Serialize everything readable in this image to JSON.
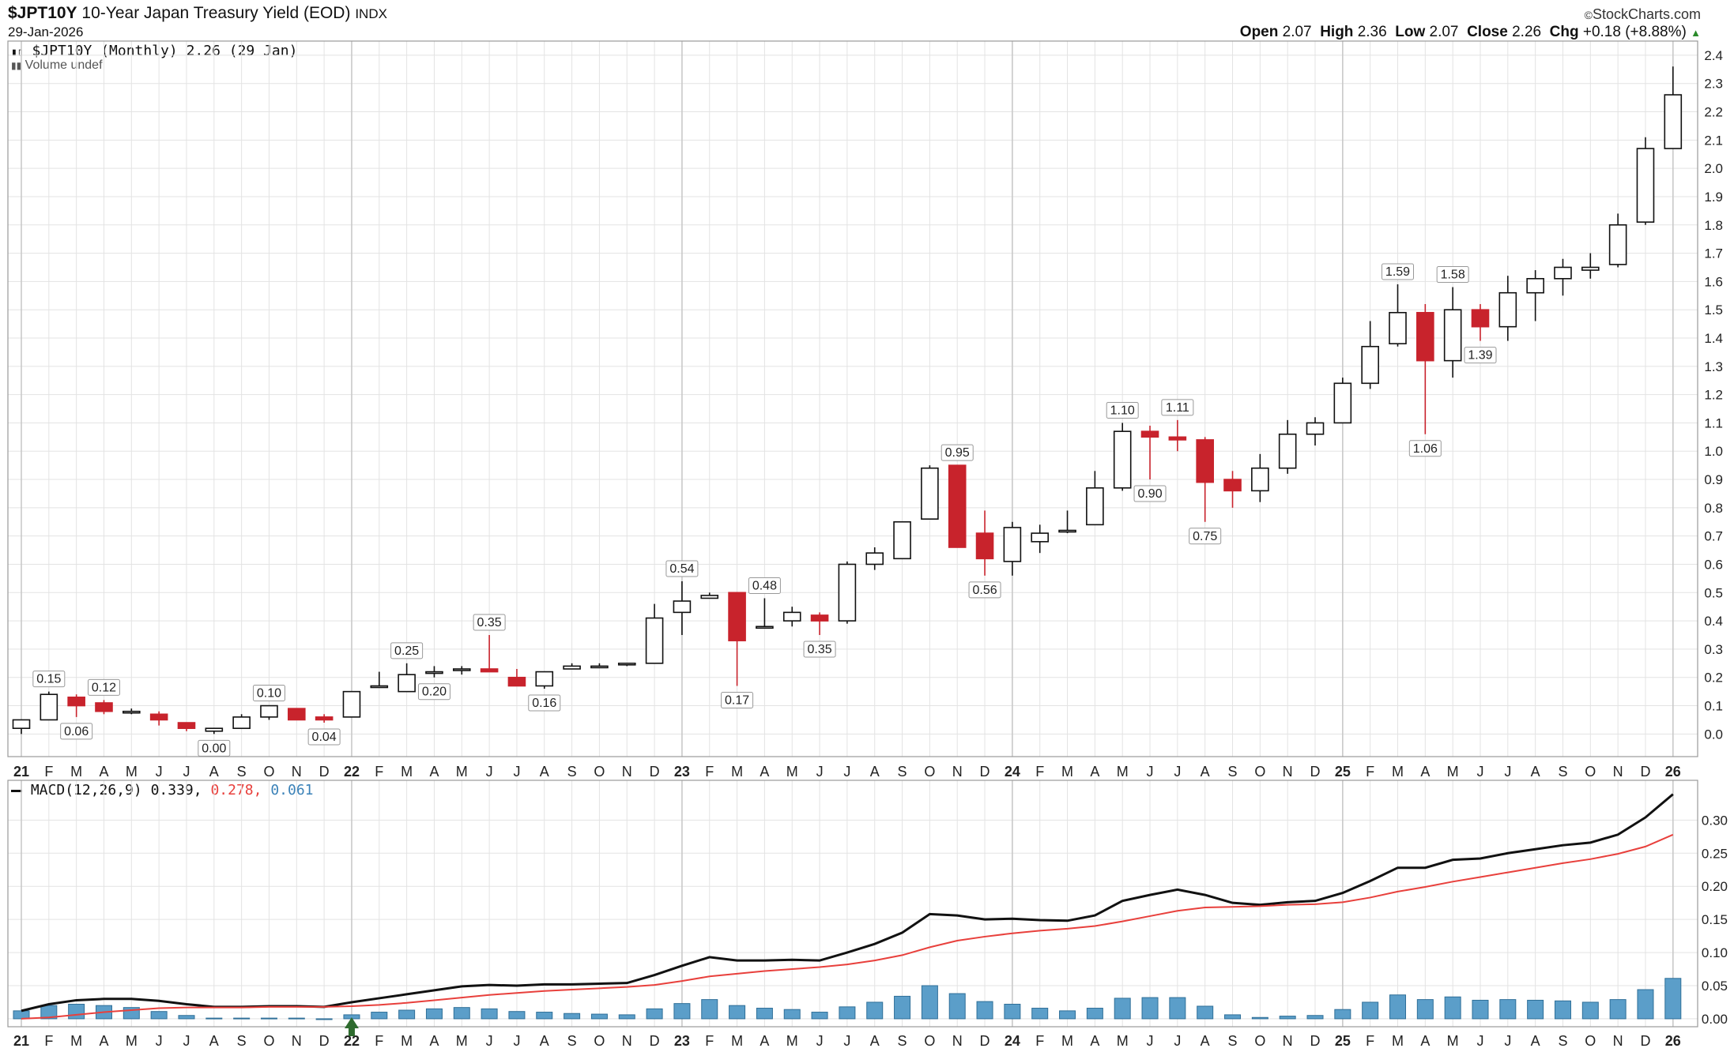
{
  "header": {
    "symbol": "$JPT10Y",
    "name": "10-Year Japan Treasury Yield (EOD)",
    "exchange": "INDX",
    "date": "29-Jan-2026",
    "brand": "StockCharts.com",
    "open_label": "Open",
    "open": "2.07",
    "high_label": "High",
    "high": "2.36",
    "low_label": "Low",
    "low": "2.07",
    "close_label": "Close",
    "close": "2.26",
    "chg_label": "Chg",
    "chg": "+0.18 (+8.88%)",
    "legend_price": "$JPT10Y (Monthly) 2.26 (29 Jan)",
    "legend_volume": "Volume undef",
    "macd_label": "MACD(12,26,9)",
    "macd_value": "0.339,",
    "signal_value": "0.278,",
    "hist_value": "0.061"
  },
  "colors": {
    "up_body": "#ffffff",
    "down_body": "#c8232c",
    "macd_line": "#111111",
    "signal_line": "#e8403c",
    "histogram": "#5b9ec9",
    "grid": "#e3e3e3"
  },
  "chart_data": [
    {
      "type": "candlestick",
      "title": "$JPT10Y (Monthly) 2.26 (29 Jan)",
      "ylim": [
        -0.08,
        2.45
      ],
      "y_ticks": [
        "0.0",
        "0.1",
        "0.2",
        "0.3",
        "0.4",
        "0.5",
        "0.6",
        "0.7",
        "0.8",
        "0.9",
        "1.0",
        "1.1",
        "1.2",
        "1.3",
        "1.4",
        "1.5",
        "1.6",
        "1.7",
        "1.8",
        "1.9",
        "2.0",
        "2.1",
        "2.2",
        "2.3",
        "2.4"
      ],
      "x_labels": [
        "21",
        "F",
        "M",
        "A",
        "M",
        "J",
        "J",
        "A",
        "S",
        "O",
        "N",
        "D",
        "22",
        "F",
        "M",
        "A",
        "M",
        "J",
        "J",
        "A",
        "S",
        "O",
        "N",
        "D",
        "23",
        "F",
        "M",
        "A",
        "M",
        "J",
        "J",
        "A",
        "S",
        "O",
        "N",
        "D",
        "24",
        "F",
        "M",
        "A",
        "M",
        "J",
        "J",
        "A",
        "S",
        "O",
        "N",
        "D",
        "25",
        "F",
        "M",
        "A",
        "M",
        "J",
        "J",
        "A",
        "S",
        "O",
        "N",
        "D",
        "26"
      ],
      "ohlc": [
        [
          0.02,
          0.05,
          0.0,
          0.05
        ],
        [
          0.05,
          0.15,
          0.05,
          0.14
        ],
        [
          0.13,
          0.14,
          0.06,
          0.1
        ],
        [
          0.11,
          0.12,
          0.07,
          0.08
        ],
        [
          0.08,
          0.09,
          0.07,
          0.08
        ],
        [
          0.07,
          0.08,
          0.03,
          0.05
        ],
        [
          0.04,
          0.04,
          0.01,
          0.02
        ],
        [
          0.01,
          0.02,
          0.0,
          0.02
        ],
        [
          0.02,
          0.07,
          0.02,
          0.06
        ],
        [
          0.06,
          0.1,
          0.05,
          0.1
        ],
        [
          0.09,
          0.09,
          0.05,
          0.05
        ],
        [
          0.06,
          0.07,
          0.04,
          0.05
        ],
        [
          0.06,
          0.15,
          0.06,
          0.15
        ],
        [
          0.17,
          0.22,
          0.17,
          0.17
        ],
        [
          0.15,
          0.25,
          0.15,
          0.21
        ],
        [
          0.22,
          0.24,
          0.2,
          0.22
        ],
        [
          0.23,
          0.24,
          0.21,
          0.23
        ],
        [
          0.23,
          0.35,
          0.22,
          0.22
        ],
        [
          0.2,
          0.23,
          0.17,
          0.17
        ],
        [
          0.17,
          0.22,
          0.16,
          0.22
        ],
        [
          0.23,
          0.25,
          0.23,
          0.24
        ],
        [
          0.24,
          0.25,
          0.24,
          0.24
        ],
        [
          0.25,
          0.25,
          0.24,
          0.25
        ],
        [
          0.25,
          0.46,
          0.25,
          0.41
        ],
        [
          0.43,
          0.54,
          0.35,
          0.47
        ],
        [
          0.48,
          0.5,
          0.48,
          0.49
        ],
        [
          0.5,
          0.5,
          0.17,
          0.33
        ],
        [
          0.38,
          0.48,
          0.38,
          0.38
        ],
        [
          0.4,
          0.45,
          0.38,
          0.43
        ],
        [
          0.42,
          0.43,
          0.35,
          0.4
        ],
        [
          0.4,
          0.61,
          0.39,
          0.6
        ],
        [
          0.6,
          0.66,
          0.58,
          0.64
        ],
        [
          0.62,
          0.75,
          0.62,
          0.75
        ],
        [
          0.76,
          0.95,
          0.76,
          0.94
        ],
        [
          0.95,
          0.95,
          0.66,
          0.66
        ],
        [
          0.71,
          0.79,
          0.56,
          0.62
        ],
        [
          0.61,
          0.75,
          0.56,
          0.73
        ],
        [
          0.68,
          0.74,
          0.64,
          0.71
        ],
        [
          0.72,
          0.79,
          0.71,
          0.72
        ],
        [
          0.74,
          0.93,
          0.74,
          0.87
        ],
        [
          0.87,
          1.1,
          0.86,
          1.07
        ],
        [
          1.07,
          1.09,
          0.9,
          1.05
        ],
        [
          1.05,
          1.11,
          1.0,
          1.04
        ],
        [
          1.04,
          1.05,
          0.75,
          0.89
        ],
        [
          0.9,
          0.93,
          0.8,
          0.86
        ],
        [
          0.86,
          0.99,
          0.82,
          0.94
        ],
        [
          0.94,
          1.11,
          0.92,
          1.06
        ],
        [
          1.06,
          1.12,
          1.02,
          1.1
        ],
        [
          1.1,
          1.26,
          1.1,
          1.24
        ],
        [
          1.24,
          1.46,
          1.22,
          1.37
        ],
        [
          1.38,
          1.59,
          1.37,
          1.49
        ],
        [
          1.49,
          1.52,
          1.06,
          1.32
        ],
        [
          1.32,
          1.58,
          1.26,
          1.5
        ],
        [
          1.5,
          1.52,
          1.39,
          1.44
        ],
        [
          1.44,
          1.62,
          1.39,
          1.56
        ],
        [
          1.56,
          1.64,
          1.46,
          1.61
        ],
        [
          1.61,
          1.68,
          1.55,
          1.65
        ],
        [
          1.64,
          1.7,
          1.61,
          1.65
        ],
        [
          1.66,
          1.84,
          1.65,
          1.8
        ],
        [
          1.81,
          2.11,
          1.8,
          2.07
        ],
        [
          2.07,
          2.36,
          2.07,
          2.26
        ]
      ],
      "annotations": [
        {
          "i": 1,
          "label": "0.15",
          "pos": "above"
        },
        {
          "i": 2,
          "label": "0.06",
          "pos": "below"
        },
        {
          "i": 3,
          "label": "0.12",
          "pos": "above"
        },
        {
          "i": 7,
          "label": "0.00",
          "pos": "below"
        },
        {
          "i": 9,
          "label": "0.10",
          "pos": "above"
        },
        {
          "i": 11,
          "label": "0.04",
          "pos": "below"
        },
        {
          "i": 14,
          "label": "0.25",
          "pos": "above"
        },
        {
          "i": 15,
          "label": "0.20",
          "pos": "below"
        },
        {
          "i": 17,
          "label": "0.35",
          "pos": "above"
        },
        {
          "i": 19,
          "label": "0.16",
          "pos": "below"
        },
        {
          "i": 24,
          "label": "0.54",
          "pos": "above"
        },
        {
          "i": 26,
          "label": "0.17",
          "pos": "below"
        },
        {
          "i": 27,
          "label": "0.48",
          "pos": "above"
        },
        {
          "i": 29,
          "label": "0.35",
          "pos": "below"
        },
        {
          "i": 34,
          "label": "0.95",
          "pos": "above"
        },
        {
          "i": 35,
          "label": "0.56",
          "pos": "below"
        },
        {
          "i": 40,
          "label": "1.10",
          "pos": "above"
        },
        {
          "i": 41,
          "label": "0.90",
          "pos": "below"
        },
        {
          "i": 42,
          "label": "1.11",
          "pos": "above"
        },
        {
          "i": 43,
          "label": "0.75",
          "pos": "below"
        },
        {
          "i": 50,
          "label": "1.59",
          "pos": "above"
        },
        {
          "i": 51,
          "label": "1.06",
          "pos": "below"
        },
        {
          "i": 52,
          "label": "1.58",
          "pos": "above"
        },
        {
          "i": 53,
          "label": "1.39",
          "pos": "below"
        }
      ]
    },
    {
      "type": "line",
      "title": "MACD(12,26,9)",
      "ylim": [
        -0.012,
        0.36
      ],
      "y_ticks": [
        "0.00",
        "0.05",
        "0.10",
        "0.15",
        "0.20",
        "0.25",
        "0.30"
      ],
      "x_labels": [
        "21",
        "F",
        "M",
        "A",
        "M",
        "J",
        "J",
        "A",
        "S",
        "O",
        "N",
        "D",
        "22",
        "F",
        "M",
        "A",
        "M",
        "J",
        "J",
        "A",
        "S",
        "O",
        "N",
        "D",
        "23",
        "F",
        "M",
        "A",
        "M",
        "J",
        "J",
        "A",
        "S",
        "O",
        "N",
        "D",
        "24",
        "F",
        "M",
        "A",
        "M",
        "J",
        "J",
        "A",
        "S",
        "O",
        "N",
        "D",
        "25",
        "F",
        "M",
        "A",
        "M",
        "J",
        "J",
        "A",
        "S",
        "O",
        "N",
        "D",
        "26"
      ],
      "series": [
        {
          "values": [
            0.012,
            0.022,
            0.028,
            0.03,
            0.03,
            0.027,
            0.022,
            0.018,
            0.018,
            0.019,
            0.019,
            0.018,
            0.025,
            0.031,
            0.037,
            0.043,
            0.049,
            0.051,
            0.05,
            0.052,
            0.052,
            0.053,
            0.054,
            0.066,
            0.08,
            0.093,
            0.088,
            0.088,
            0.089,
            0.088,
            0.1,
            0.113,
            0.13,
            0.158,
            0.156,
            0.15,
            0.151,
            0.149,
            0.148,
            0.156,
            0.178,
            0.187,
            0.195,
            0.187,
            0.175,
            0.172,
            0.176,
            0.178,
            0.19,
            0.208,
            0.228,
            0.228,
            0.24,
            0.242,
            0.25,
            0.256,
            0.262,
            0.266,
            0.278,
            0.304,
            0.339
          ]
        },
        {
          "values": [
            0.0,
            0.002,
            0.006,
            0.01,
            0.013,
            0.016,
            0.017,
            0.017,
            0.017,
            0.018,
            0.018,
            0.018,
            0.019,
            0.021,
            0.024,
            0.028,
            0.032,
            0.036,
            0.039,
            0.042,
            0.044,
            0.046,
            0.048,
            0.051,
            0.057,
            0.064,
            0.068,
            0.072,
            0.075,
            0.078,
            0.082,
            0.088,
            0.096,
            0.108,
            0.118,
            0.124,
            0.129,
            0.133,
            0.136,
            0.14,
            0.147,
            0.155,
            0.163,
            0.168,
            0.169,
            0.17,
            0.172,
            0.173,
            0.176,
            0.183,
            0.192,
            0.199,
            0.207,
            0.214,
            0.221,
            0.228,
            0.235,
            0.241,
            0.249,
            0.26,
            0.278
          ]
        }
      ],
      "histogram": [
        0.012,
        0.02,
        0.022,
        0.02,
        0.017,
        0.011,
        0.005,
        0.001,
        0.001,
        0.001,
        0.001,
        0.0,
        0.006,
        0.01,
        0.013,
        0.015,
        0.017,
        0.015,
        0.011,
        0.01,
        0.008,
        0.007,
        0.006,
        0.015,
        0.023,
        0.029,
        0.02,
        0.016,
        0.014,
        0.01,
        0.018,
        0.025,
        0.034,
        0.05,
        0.038,
        0.026,
        0.022,
        0.016,
        0.012,
        0.016,
        0.031,
        0.032,
        0.032,
        0.019,
        0.006,
        0.002,
        0.004,
        0.005,
        0.014,
        0.025,
        0.036,
        0.029,
        0.033,
        0.028,
        0.029,
        0.028,
        0.027,
        0.025,
        0.029,
        0.044,
        0.061
      ]
    }
  ]
}
